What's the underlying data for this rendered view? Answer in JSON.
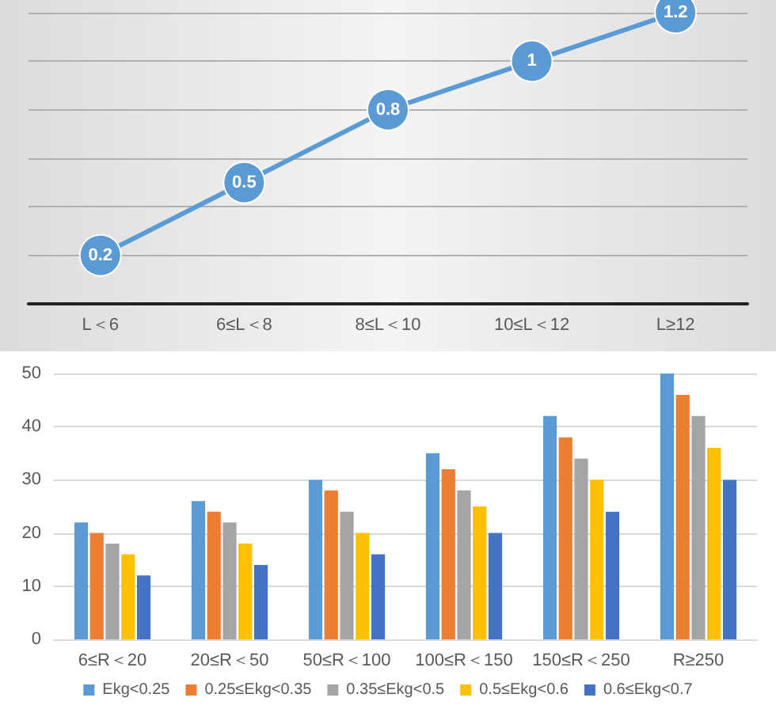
{
  "chart_data": [
    {
      "type": "line",
      "categories": [
        "L＜6",
        "6≤L＜8",
        "8≤L＜10",
        "10≤L＜12",
        "L≥12"
      ],
      "values": [
        0.2,
        0.5,
        0.8,
        1,
        1.2
      ],
      "color": "#5b9bd5",
      "marker": "circle",
      "line_style": "solid",
      "data_labels": true,
      "ylim": [
        0,
        1.2
      ],
      "yticks": [
        {
          "value": 0,
          "label": null
        },
        {
          "value": 0.2,
          "label": null
        },
        {
          "value": 0.4,
          "label": null
        },
        {
          "value": 0.6,
          "label": null
        },
        {
          "value": 0.8,
          "label": null
        },
        {
          "value": 1,
          "label": null
        },
        {
          "value": 1.2,
          "label": null
        }
      ],
      "grid": "y",
      "tick_labels": "x",
      "legend": false
    },
    {
      "type": "bar",
      "categories": [
        "6≤R＜20",
        "20≤R＜50",
        "50≤R＜100",
        "100≤R＜150",
        "150≤R＜250",
        "R≥250"
      ],
      "series": [
        {
          "name": "Ekg<0.25",
          "color": "#5b9bd5",
          "values": [
            22,
            26,
            30,
            35,
            42,
            50
          ]
        },
        {
          "name": "0.25≤Ekg<0.35",
          "color": "#ed7d31",
          "values": [
            20,
            24,
            28,
            32,
            38,
            46
          ]
        },
        {
          "name": "0.35≤Ekg<0.5",
          "color": "#a5a5a5",
          "values": [
            18,
            22,
            24,
            28,
            34,
            42
          ]
        },
        {
          "name": "0.5≤Ekg<0.6",
          "color": "#ffc000",
          "values": [
            16,
            18,
            20,
            25,
            30,
            36
          ]
        },
        {
          "name": "0.6≤Ekg<0.7",
          "color": "#4472c4",
          "values": [
            12,
            14,
            16,
            20,
            24,
            30
          ]
        }
      ],
      "ylim": [
        0,
        50
      ],
      "yticks": [
        0,
        10,
        20,
        30,
        40,
        50
      ],
      "grid": "y",
      "legend": "bottom"
    }
  ]
}
